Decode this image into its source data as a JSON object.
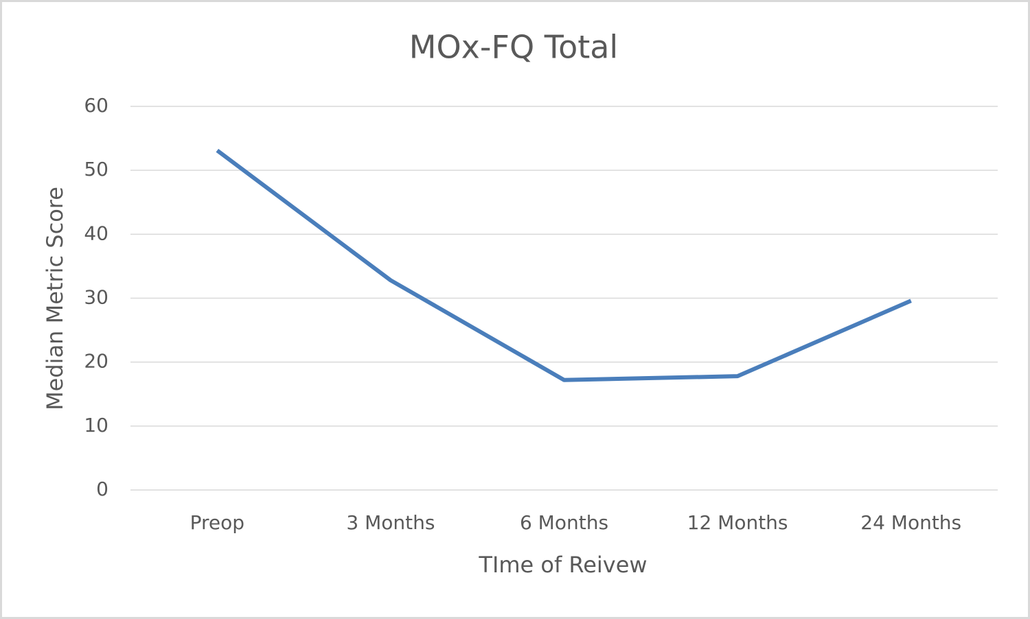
{
  "chart_data": {
    "type": "line",
    "title": "MOx-FQ Total",
    "x_label": "TIme of Reivew",
    "y_label": "Median Metric Score",
    "categories": [
      "Preop",
      "3 Months",
      "6 Months",
      "12 Months",
      "24 Months"
    ],
    "values": [
      53.1,
      32.8,
      17.2,
      17.8,
      29.6
    ],
    "color": "#4a7ebb",
    "ylim": [
      0,
      60
    ],
    "yticks": [
      0,
      10,
      20,
      30,
      40,
      50,
      60
    ],
    "grid": true
  }
}
